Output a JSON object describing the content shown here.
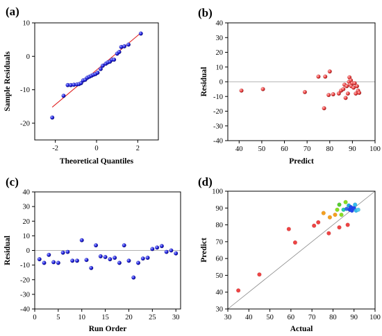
{
  "chart_data": [
    {
      "panel_label": "(a)",
      "type": "scatter",
      "xlabel": "Theoretical Quantiles",
      "ylabel": "Sample Residuals",
      "xlim": [
        -3,
        3
      ],
      "ylim": [
        -25,
        10
      ],
      "xticks": [
        -2,
        0,
        2
      ],
      "yticks": [
        -20,
        -10,
        0,
        10
      ],
      "point_color": "#2020e0",
      "fit_line": {
        "color": "#e02020",
        "x": [
          -2.15,
          2.15
        ],
        "y": [
          -15.2,
          7
        ]
      },
      "points": [
        [
          -2.15,
          -18.3
        ],
        [
          -1.6,
          -11.8
        ],
        [
          -1.4,
          -8.6
        ],
        [
          -1.25,
          -8.6
        ],
        [
          -1.1,
          -8.5
        ],
        [
          -0.95,
          -8.4
        ],
        [
          -0.85,
          -8.3
        ],
        [
          -0.75,
          -8.0
        ],
        [
          -0.65,
          -7.2
        ],
        [
          -0.55,
          -7.0
        ],
        [
          -0.45,
          -6.4
        ],
        [
          -0.35,
          -6.1
        ],
        [
          -0.25,
          -5.8
        ],
        [
          -0.15,
          -5.5
        ],
        [
          -0.05,
          -5.3
        ],
        [
          0.05,
          -4.9
        ],
        [
          0.2,
          -3.8
        ],
        [
          0.3,
          -2.8
        ],
        [
          0.45,
          -2.2
        ],
        [
          0.55,
          -1.8
        ],
        [
          0.65,
          -1.6
        ],
        [
          0.75,
          -1.0
        ],
        [
          0.85,
          -1.0
        ],
        [
          1.0,
          0.8
        ],
        [
          1.1,
          1.3
        ],
        [
          1.2,
          2.8
        ],
        [
          1.35,
          3.0
        ],
        [
          1.55,
          3.5
        ],
        [
          2.15,
          6.8
        ]
      ]
    },
    {
      "panel_label": "(b)",
      "type": "scatter",
      "xlabel": "Predict",
      "ylabel": "Residual",
      "xlim": [
        35,
        100
      ],
      "ylim": [
        -40,
        40
      ],
      "xticks": [
        40,
        50,
        60,
        70,
        80,
        90,
        100
      ],
      "yticks": [
        -40,
        -30,
        -20,
        -10,
        0,
        10,
        20,
        30,
        40
      ],
      "point_color": "#ee4444",
      "zero_line": true,
      "points": [
        [
          41,
          -6
        ],
        [
          50.5,
          -5
        ],
        [
          69,
          -7
        ],
        [
          75,
          3.5
        ],
        [
          77.5,
          -18
        ],
        [
          78,
          3.5
        ],
        [
          79.5,
          -9
        ],
        [
          80,
          7
        ],
        [
          81.5,
          -8.5
        ],
        [
          84,
          -8
        ],
        [
          85,
          -6
        ],
        [
          86,
          -5
        ],
        [
          86.5,
          -2
        ],
        [
          87,
          -11
        ],
        [
          87.5,
          -3
        ],
        [
          88,
          -8
        ],
        [
          88.5,
          0
        ],
        [
          88.7,
          3
        ],
        [
          89,
          -2
        ],
        [
          89.3,
          1
        ],
        [
          89.5,
          -3
        ],
        [
          90,
          -1
        ],
        [
          90.5,
          -4
        ],
        [
          91,
          -1
        ],
        [
          91.5,
          -8
        ],
        [
          92,
          -3
        ],
        [
          92.5,
          -6
        ],
        [
          93,
          -7.5
        ]
      ]
    },
    {
      "panel_label": "(c)",
      "type": "scatter",
      "xlabel": "Run Order",
      "ylabel": "Residual",
      "xlim": [
        0,
        31
      ],
      "ylim": [
        -40,
        40
      ],
      "xticks": [
        0,
        5,
        10,
        15,
        20,
        25,
        30
      ],
      "yticks": [
        -40,
        -30,
        -20,
        -10,
        0,
        10,
        20,
        30,
        40
      ],
      "point_color": "#2020e0",
      "zero_line": true,
      "points": [
        [
          1,
          -6
        ],
        [
          2,
          -8.5
        ],
        [
          3,
          -3
        ],
        [
          4,
          -8
        ],
        [
          5,
          -8.5
        ],
        [
          6,
          -1.5
        ],
        [
          7,
          -1
        ],
        [
          8,
          -7
        ],
        [
          9,
          -7
        ],
        [
          10,
          7
        ],
        [
          11,
          -6.5
        ],
        [
          12,
          -12
        ],
        [
          13,
          3.5
        ],
        [
          14,
          -4
        ],
        [
          15,
          -4.5
        ],
        [
          16,
          -6
        ],
        [
          17,
          -5
        ],
        [
          18,
          -8.5
        ],
        [
          19,
          3.5
        ],
        [
          20,
          -7
        ],
        [
          21,
          -18.5
        ],
        [
          22,
          -8.5
        ],
        [
          23,
          -5.5
        ],
        [
          24,
          -5
        ],
        [
          25,
          1
        ],
        [
          26,
          2
        ],
        [
          27,
          3
        ],
        [
          28,
          -1
        ],
        [
          29,
          0
        ],
        [
          30,
          -2
        ]
      ]
    },
    {
      "panel_label": "(d)",
      "type": "scatter",
      "xlabel": "Actual",
      "ylabel": "Predict",
      "xlim": [
        30,
        100
      ],
      "ylim": [
        30,
        100
      ],
      "xticks": [
        30,
        40,
        50,
        60,
        70,
        80,
        90,
        100
      ],
      "yticks": [
        30,
        40,
        50,
        60,
        70,
        80,
        90,
        100
      ],
      "identity_line": true,
      "points": [
        {
          "x": 35,
          "y": 41,
          "color": "#ee4444"
        },
        {
          "x": 45,
          "y": 50.5,
          "color": "#ee4444"
        },
        {
          "x": 59,
          "y": 77.5,
          "color": "#ee4444"
        },
        {
          "x": 62,
          "y": 69.5,
          "color": "#ee4444"
        },
        {
          "x": 71,
          "y": 79.5,
          "color": "#ee4444"
        },
        {
          "x": 73,
          "y": 81.5,
          "color": "#ee4444"
        },
        {
          "x": 75.5,
          "y": 87,
          "color": "#f5a020"
        },
        {
          "x": 78,
          "y": 75,
          "color": "#ee4444"
        },
        {
          "x": 78.5,
          "y": 84.5,
          "color": "#f5a020"
        },
        {
          "x": 81,
          "y": 86,
          "color": "#f5a020"
        },
        {
          "x": 83,
          "y": 78.5,
          "color": "#ee4444"
        },
        {
          "x": 82,
          "y": 89,
          "color": "#88dd22"
        },
        {
          "x": 83,
          "y": 92,
          "color": "#55cc33"
        },
        {
          "x": 84,
          "y": 86,
          "color": "#88dd22"
        },
        {
          "x": 85,
          "y": 89,
          "color": "#22ccaa"
        },
        {
          "x": 86,
          "y": 93.5,
          "color": "#88dd22"
        },
        {
          "x": 86.5,
          "y": 89.5,
          "color": "#3366ee"
        },
        {
          "x": 87,
          "y": 80,
          "color": "#ee4444"
        },
        {
          "x": 87.5,
          "y": 91.5,
          "color": "#22aadd"
        },
        {
          "x": 88,
          "y": 89,
          "color": "#2244ee"
        },
        {
          "x": 88.5,
          "y": 90.5,
          "color": "#2244ee"
        },
        {
          "x": 89,
          "y": 88.5,
          "color": "#2244ee"
        },
        {
          "x": 90,
          "y": 90,
          "color": "#2244ee"
        },
        {
          "x": 90.5,
          "y": 92,
          "color": "#33bbee"
        },
        {
          "x": 91,
          "y": 88.5,
          "color": "#33bbee"
        },
        {
          "x": 92,
          "y": 89,
          "color": "#55ccee"
        }
      ]
    }
  ]
}
